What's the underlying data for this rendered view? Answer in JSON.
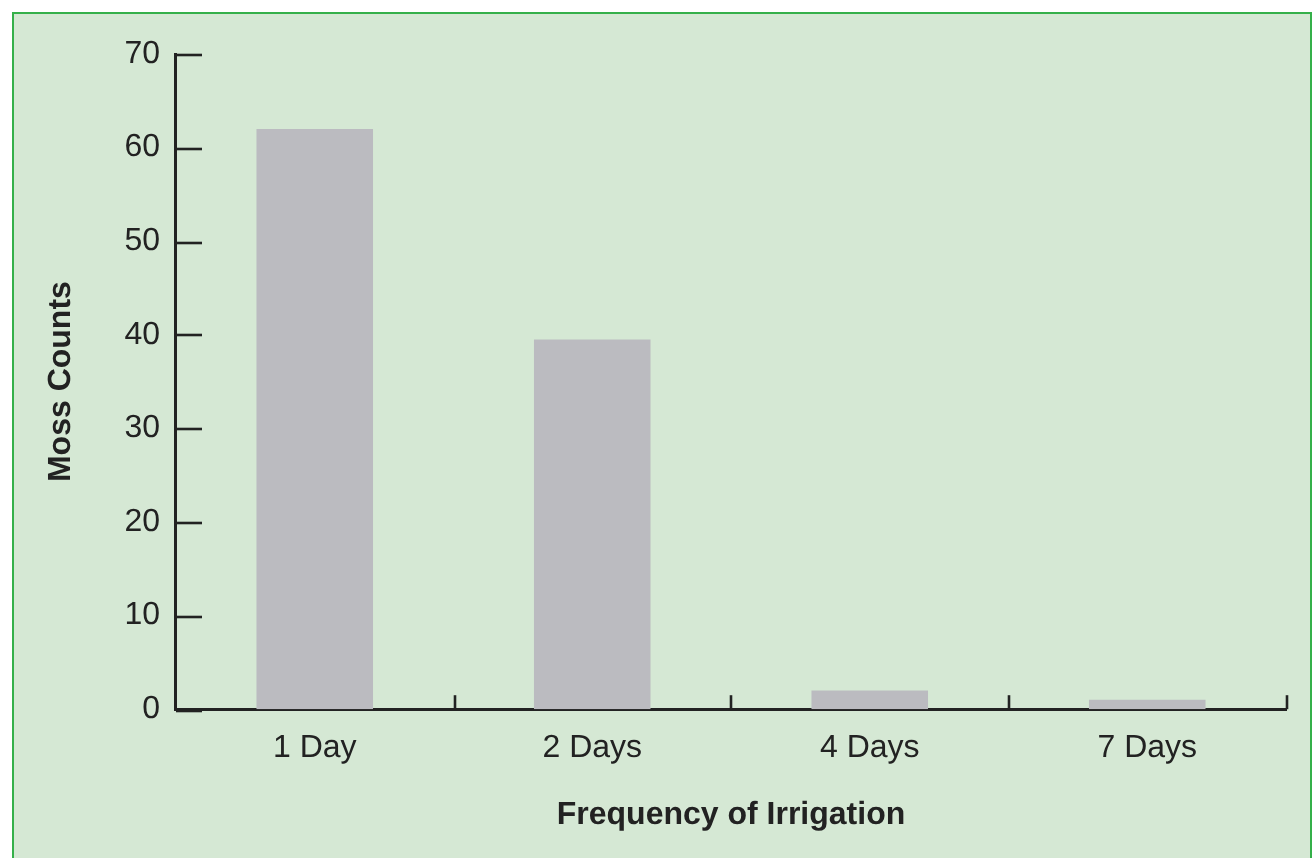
{
  "chart_data": {
    "type": "bar",
    "xlabel": "Frequency of Irrigation",
    "ylabel": "Moss Counts",
    "categories": [
      "1 Day",
      "2 Days",
      "4 Days",
      "7 Days"
    ],
    "values": [
      62,
      39.5,
      2,
      1
    ],
    "color": "#bbbbc0",
    "ylim": [
      0,
      70
    ],
    "yticks": [
      0,
      10,
      20,
      30,
      40,
      50,
      60,
      70
    ],
    "grid": false,
    "legend": false
  }
}
